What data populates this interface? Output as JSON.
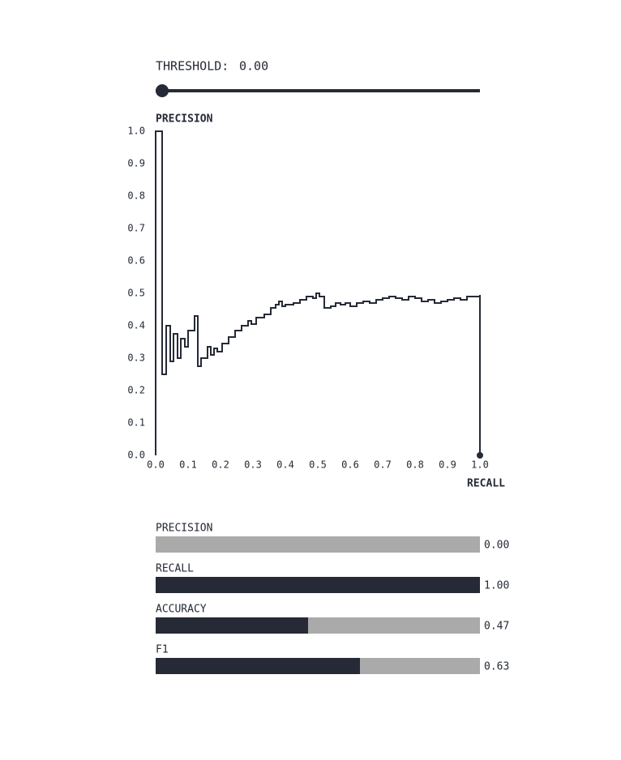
{
  "threshold": {
    "label": "THRESHOLD:",
    "value": 0,
    "value_label": "0.00",
    "range": [
      0,
      1
    ]
  },
  "chart_data": {
    "type": "step",
    "ylabel": "PRECISION",
    "xlabel": "RECALL",
    "color": "#252a36",
    "x": [
      0,
      0,
      0.02,
      0.0325,
      0.045,
      0.055,
      0.0675,
      0.0775,
      0.09,
      0.1,
      0.12,
      0.13,
      0.14,
      0.16,
      0.17,
      0.18,
      0.19,
      0.205,
      0.225,
      0.245,
      0.265,
      0.285,
      0.295,
      0.31,
      0.335,
      0.355,
      0.37,
      0.38,
      0.39,
      0.4,
      0.425,
      0.445,
      0.465,
      0.485,
      0.495,
      0.505,
      0.52,
      0.54,
      0.555,
      0.57,
      0.585,
      0.6,
      0.62,
      0.64,
      0.66,
      0.68,
      0.7,
      0.72,
      0.74,
      0.76,
      0.78,
      0.8,
      0.82,
      0.84,
      0.86,
      0.88,
      0.9,
      0.92,
      0.94,
      0.96,
      0.98,
      1.0,
      1.0
    ],
    "values": [
      0,
      1.0,
      0.25,
      0.4,
      0.29,
      0.375,
      0.3,
      0.36,
      0.335,
      0.385,
      0.43,
      0.275,
      0.3,
      0.335,
      0.31,
      0.33,
      0.32,
      0.345,
      0.365,
      0.385,
      0.4,
      0.415,
      0.405,
      0.425,
      0.435,
      0.455,
      0.465,
      0.475,
      0.46,
      0.465,
      0.47,
      0.48,
      0.49,
      0.485,
      0.5,
      0.49,
      0.455,
      0.46,
      0.47,
      0.465,
      0.47,
      0.46,
      0.47,
      0.475,
      0.47,
      0.48,
      0.485,
      0.49,
      0.485,
      0.48,
      0.49,
      0.485,
      0.475,
      0.48,
      0.47,
      0.475,
      0.48,
      0.485,
      0.48,
      0.49,
      0.49,
      0.495,
      0.0
    ],
    "xlim": [
      0,
      1
    ],
    "ylim": [
      0,
      1
    ],
    "xticks": [
      {
        "value": 0,
        "label": "0.0"
      },
      0.1,
      0.2,
      0.3,
      0.4,
      0.5,
      0.6,
      0.7,
      0.8,
      0.9,
      {
        "value": 1,
        "label": "1.0"
      }
    ],
    "yticks": [
      {
        "value": 0,
        "label": "0.0"
      },
      0.1,
      0.2,
      0.3,
      0.4,
      0.5,
      0.6,
      0.7,
      0.8,
      0.9,
      {
        "value": 1,
        "label": "1.0"
      }
    ]
  },
  "metrics": [
    {
      "name": "PRECISION",
      "value": 0.0,
      "value_label": "0.00"
    },
    {
      "name": "RECALL",
      "value": 1.0,
      "value_label": "1.00"
    },
    {
      "name": "ACCURACY",
      "value": 0.47,
      "value_label": "0.47"
    },
    {
      "name": "F1",
      "value": 0.63,
      "value_label": "0.63"
    }
  ]
}
